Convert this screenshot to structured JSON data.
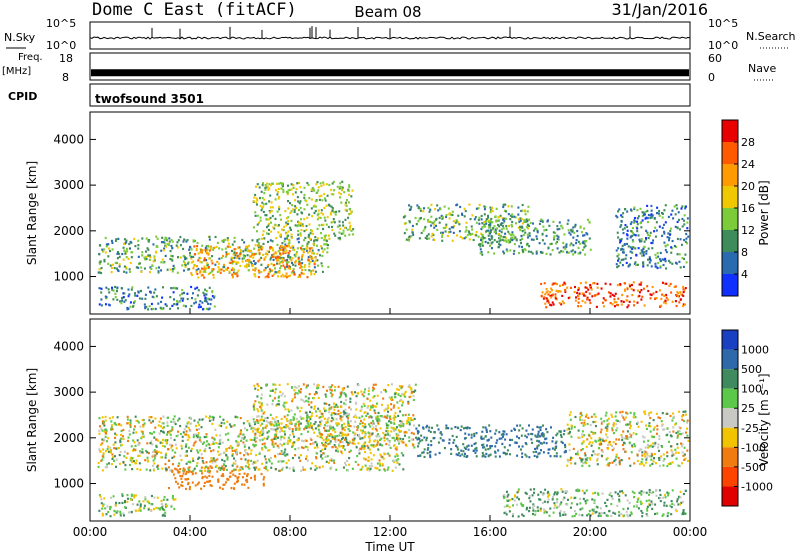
{
  "header": {
    "station": "Dome C East (fitACF)",
    "beam": "Beam 08",
    "date": "31/Jan/2016"
  },
  "strips": {
    "nsky": {
      "label": "N.Sky",
      "ticks_left": [
        "10^5",
        "10^0"
      ],
      "ticks_right": [
        "10^5",
        "10^0"
      ],
      "right_label": "N.Search"
    },
    "freq": {
      "label_line1": "Freq.",
      "label_line2": "[MHz]",
      "ticks_left": [
        "18",
        "8"
      ],
      "ticks_right": [
        "60",
        "0"
      ],
      "right_label": "Nave",
      "value_mhz": 10.5
    },
    "cpid": {
      "label": "CPID",
      "program": "twofsound 3501"
    }
  },
  "panels": {
    "power": {
      "ylabel": "Slant Range [km]",
      "colorbar_label": "Power [dB]",
      "colorbar_ticks": [
        "28",
        "24",
        "20",
        "16",
        "12",
        "8",
        "4"
      ],
      "colors": [
        "#e80000",
        "#ff5a00",
        "#ff9a00",
        "#f0c800",
        "#7ccc3a",
        "#3d8c5a",
        "#2a6bb0",
        "#1030ff"
      ]
    },
    "velocity": {
      "ylabel": "Slant Range [km]",
      "colorbar_label": "Velocity [m s⁻¹]",
      "colorbar_ticks": [
        "1000",
        "500",
        "100",
        "25",
        "-25",
        "-100",
        "-500",
        "-1000"
      ],
      "colors": [
        "#1840c0",
        "#2e6aaa",
        "#3f8a5e",
        "#5cc84a",
        "#c8c8c4",
        "#f2c400",
        "#f07c10",
        "#ff4400",
        "#e00000"
      ]
    }
  },
  "xaxis": {
    "label": "Time UT",
    "ticks": [
      "00:00",
      "04:00",
      "08:00",
      "12:00",
      "16:00",
      "20:00",
      "00:00"
    ]
  },
  "chart_data": {
    "type": "heatmap",
    "x_hours_range": [
      0,
      24
    ],
    "y_range_km": [
      180,
      4600
    ],
    "y_ticks_km": [
      1000,
      2000,
      3000,
      4000
    ],
    "power_regions": [
      {
        "t0": 0.3,
        "t1": 9.5,
        "r0": 1100,
        "r1": 1900,
        "db": 14
      },
      {
        "t0": 4.0,
        "t1": 9.0,
        "r0": 1000,
        "r1": 1700,
        "db": 24
      },
      {
        "t0": 6.5,
        "t1": 10.5,
        "r0": 1800,
        "r1": 3100,
        "db": 16
      },
      {
        "t0": 12.5,
        "t1": 17.5,
        "r0": 1800,
        "r1": 2600,
        "db": 14
      },
      {
        "t0": 15.5,
        "t1": 20.0,
        "r0": 1500,
        "r1": 2300,
        "db": 12
      },
      {
        "t0": 18.0,
        "t1": 23.8,
        "r0": 350,
        "r1": 900,
        "db": 28
      },
      {
        "t0": 0.3,
        "t1": 5.0,
        "r0": 300,
        "r1": 800,
        "db": 10
      },
      {
        "t0": 21.0,
        "t1": 23.9,
        "r0": 1200,
        "r1": 2600,
        "db": 10
      }
    ],
    "velocity_regions": [
      {
        "t0": 3.0,
        "t1": 7.0,
        "r0": 900,
        "r1": 1400,
        "v": -300
      },
      {
        "t0": 0.3,
        "t1": 12.5,
        "r0": 1300,
        "r1": 2500,
        "v": 0
      },
      {
        "t0": 6.5,
        "t1": 13.0,
        "r0": 1800,
        "r1": 3200,
        "v": 0
      },
      {
        "t0": 13.0,
        "t1": 19.0,
        "r0": 1600,
        "r1": 2300,
        "v": 500
      },
      {
        "t0": 16.5,
        "t1": 23.8,
        "r0": 300,
        "r1": 900,
        "v": 100
      },
      {
        "t0": 0.3,
        "t1": 3.5,
        "r0": 300,
        "r1": 800,
        "v": 50
      },
      {
        "t0": 19.0,
        "t1": 23.9,
        "r0": 1400,
        "r1": 2600,
        "v": 0
      }
    ]
  }
}
